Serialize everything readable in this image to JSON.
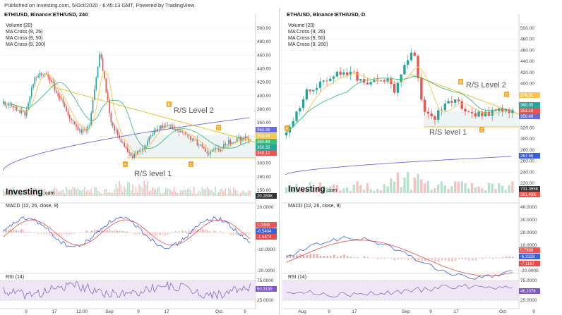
{
  "header": {
    "published": "Published on Investing.com, 5/Oct/2020 - 6:45:13 GMT, Powered by TradingView."
  },
  "colors": {
    "up": "#26a69a",
    "down": "#ef5350",
    "ma_short": "#f7c64f",
    "ma_mid": "#3dbd7d",
    "ma_long": "#6b6bd6",
    "band_fill": "#eef3f3",
    "trend": "#e6b800",
    "macd_line": "#3860d8",
    "signal_line": "#e84b4b",
    "rsi_line": "#7e57c2",
    "rsi_band": "#efe6f5",
    "marker_orange": "#f5a623"
  },
  "left_chart": {
    "title": "ETH/USD, Binance:ETH/USD, 240",
    "legend": [
      "Volume (20)",
      "MA Cross (9, 26)",
      "MA Cross (9, 50)",
      "MA Cross (9, 200)"
    ],
    "price_axis": [
      "500.00",
      "480.00",
      "460.00",
      "440.00",
      "420.00",
      "400.00",
      "380.00",
      "360.00",
      "340.00",
      "320.00",
      "300.00",
      "280.00",
      "250.00"
    ],
    "price_tags": [
      {
        "text": "363.36",
        "color": "#6b6bd6"
      },
      {
        "text": "353.36",
        "color": "#f7c64f"
      },
      {
        "text": "350.48",
        "color": "#3dbd7d"
      },
      {
        "text": "350.35",
        "color": "#26a69a"
      },
      {
        "text": "349.12",
        "color": "#ef5350"
      }
    ],
    "volume_tag": "20.289K",
    "annotation_upper": "R/S Level 2",
    "annotation_lower": "R/S level 1",
    "markers": [
      "A",
      "B",
      "C",
      "D"
    ],
    "macd_label": "MACD (12, 26, close, 9)",
    "macd_axis": [
      "20.0000",
      "10.0000",
      "-10.0000",
      "-20.0000"
    ],
    "macd_tags": [
      {
        "text": "1.0489",
        "color": "#ef5350"
      },
      {
        "text": "-0.5404",
        "color": "#3860d8"
      },
      {
        "text": "-1.5874",
        "color": "#e84b4b"
      }
    ],
    "rsi_label": "RSI (14)",
    "rsi_axis": [
      "75.0000",
      "25.0000"
    ],
    "rsi_tag": "50.3135",
    "time_axis": [
      "9",
      "17",
      "12:00",
      "Sep",
      "9",
      "17",
      "Oct",
      "9"
    ]
  },
  "right_chart": {
    "title": "ETH/USD, Binance:ETH/USD, D",
    "legend": [
      "Volume (20)",
      "MA Cross (9, 26)",
      "MA Cross (9, 50)",
      "MA Cross (9, 200)"
    ],
    "price_axis": [
      "500.00",
      "480.00",
      "460.00",
      "440.00",
      "420.00",
      "400.00",
      "380.00",
      "360.00",
      "340.00",
      "320.00",
      "300.00",
      "280.00",
      "260.00",
      "240.00",
      "220.00"
    ],
    "price_tags": [
      {
        "text": "376.31",
        "color": "#f7c64f"
      },
      {
        "text": "360.35",
        "color": "#26a69a"
      },
      {
        "text": "353.16",
        "color": "#ef5350"
      },
      {
        "text": "350.46",
        "color": "#6b6bd6"
      },
      {
        "text": "267.56",
        "color": "#3860d8"
      },
      {
        "text": "731.355K",
        "color": "#333333"
      },
      {
        "text": "361.43K",
        "color": "#ef5350"
      }
    ],
    "annotation_upper": "R/S Level 2",
    "annotation_lower": "R/S level 1",
    "markers": [
      "A",
      "B",
      "C",
      "D"
    ],
    "macd_label": "MACD (12, 26, close, 9)",
    "macd_axis": [
      "40.0000",
      "30.0000",
      "20.0000",
      "10.0000",
      "-10.0000",
      "-20.0000"
    ],
    "macd_tags": [
      {
        "text": "0.7936",
        "color": "#ef5350"
      },
      {
        "text": "-6.3328",
        "color": "#3860d8"
      },
      {
        "text": "-7.1167",
        "color": "#e84b4b"
      }
    ],
    "rsi_label": "RSI (14)",
    "rsi_axis": [
      "75.0000",
      "25.0000"
    ],
    "rsi_tag": "46.2076",
    "time_axis": [
      "Aug",
      "9",
      "17",
      "Sep",
      "9",
      "17",
      "Oct",
      "9"
    ]
  },
  "logo": {
    "text": "Investing",
    "suffix": ".com"
  }
}
